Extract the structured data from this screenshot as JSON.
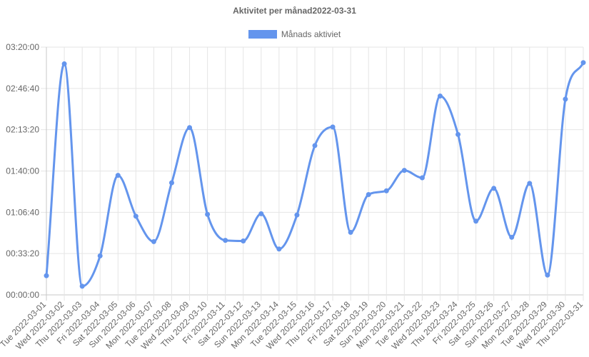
{
  "chart_data": {
    "type": "line",
    "title": "Aktivitet per månad2022-03-31",
    "legend_position": "top",
    "grid": true,
    "y_unit": "h:mm:ss",
    "ylim": [
      "0:00:00",
      "3:20:00"
    ],
    "y_ticks": [
      "00:00:00",
      "00:33:20",
      "01:06:40",
      "01:40:00",
      "02:13:20",
      "02:46:40",
      "03:20:00"
    ],
    "categories": [
      "Tue 2022-03-01",
      "Wed 2022-03-02",
      "Thu 2022-03-03",
      "Fri 2022-03-04",
      "Sat 2022-03-05",
      "Sun 2022-03-06",
      "Mon 2022-03-07",
      "Tue 2022-03-08",
      "Wed 2022-03-09",
      "Thu 2022-03-10",
      "Fri 2022-03-11",
      "Sat 2022-03-12",
      "Sun 2022-03-13",
      "Mon 2022-03-14",
      "Tue 2022-03-15",
      "Wed 2022-03-16",
      "Thu 2022-03-17",
      "Fri 2022-03-18",
      "Sat 2022-03-19",
      "Sun 2022-03-20",
      "Mon 2022-03-21",
      "Tue 2022-03-22",
      "Wed 2022-03-23",
      "Thu 2022-03-24",
      "Fri 2022-03-25",
      "Sat 2022-03-26",
      "Sun 2022-03-27",
      "Mon 2022-03-28",
      "Tue 2022-03-29",
      "Wed 2022-03-30",
      "Thu 2022-03-31"
    ],
    "series": [
      {
        "name": "Månads aktiviet",
        "color": "#6495ED",
        "values": [
          "0:15:30",
          "3:06:30",
          "0:07:00",
          "0:31:30",
          "1:36:30",
          "1:03:30",
          "0:43:00",
          "1:30:30",
          "2:15:00",
          "1:05:00",
          "0:44:00",
          "0:43:30",
          "1:05:30",
          "0:37:00",
          "1:04:30",
          "2:00:30",
          "2:15:30",
          "0:50:30",
          "1:21:00",
          "1:24:00",
          "1:40:30",
          "1:34:30",
          "2:40:30",
          "2:09:30",
          "0:59:30",
          "1:26:00",
          "0:46:30",
          "1:30:00",
          "0:16:00",
          "2:38:00",
          "3:07:30"
        ]
      }
    ]
  }
}
